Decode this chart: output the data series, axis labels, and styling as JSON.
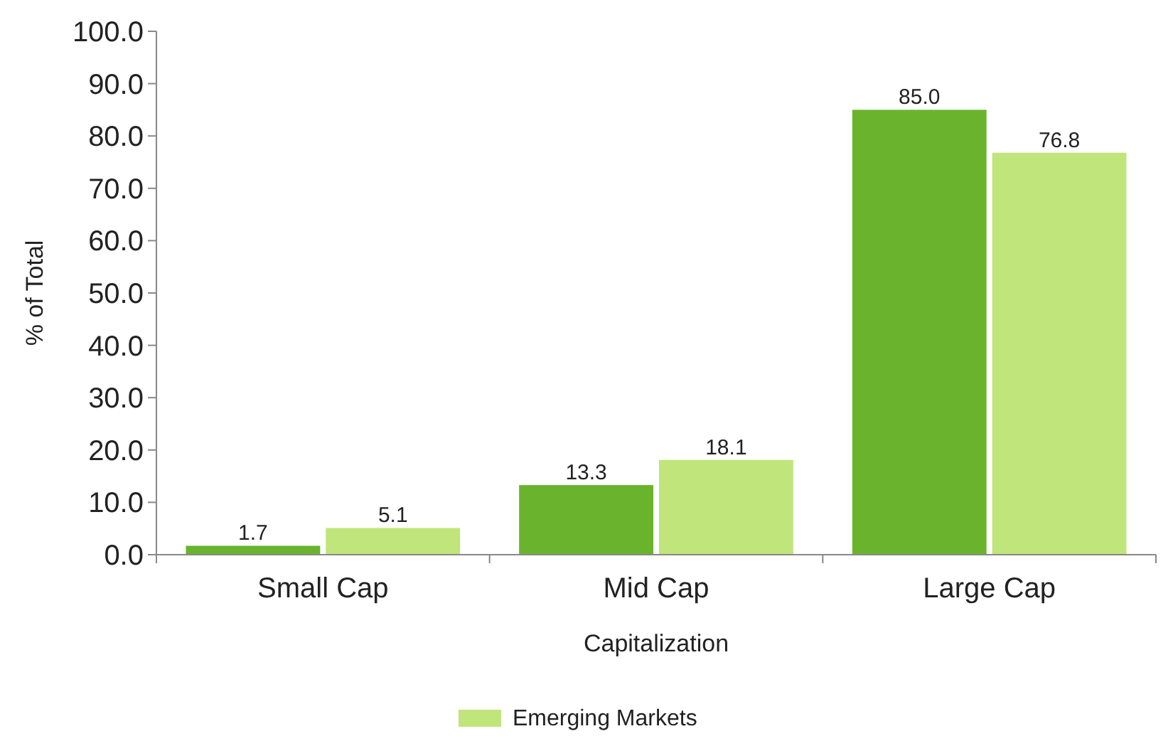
{
  "chart_data": {
    "type": "bar",
    "xlabel": "Capitalization",
    "ylabel": "% of Total",
    "categories": [
      "Small Cap",
      "Mid Cap",
      "Large Cap"
    ],
    "series": [
      {
        "color": "#6ab42d",
        "values": [
          1.7,
          13.3,
          85.0
        ],
        "value_labels": [
          "1.7",
          "13.3",
          "85.0"
        ]
      },
      {
        "name": "Emerging Markets",
        "color": "#c0e57a",
        "values": [
          5.1,
          18.1,
          76.8
        ],
        "value_labels": [
          "5.1",
          "18.1",
          "76.8"
        ]
      }
    ],
    "ylim": [
      0,
      100
    ],
    "yticks": [
      {
        "value": 0,
        "label": "0.0"
      },
      {
        "value": 10,
        "label": "10.0"
      },
      {
        "value": 20,
        "label": "20.0"
      },
      {
        "value": 30,
        "label": "30.0"
      },
      {
        "value": 40,
        "label": "40.0"
      },
      {
        "value": 50,
        "label": "50.0"
      },
      {
        "value": 60,
        "label": "60.0"
      },
      {
        "value": 70,
        "label": "70.0"
      },
      {
        "value": 80,
        "label": "80.0"
      },
      {
        "value": 90,
        "label": "90.0"
      },
      {
        "value": 100,
        "label": "100.0"
      }
    ],
    "grid": false,
    "legend": "bottom"
  }
}
